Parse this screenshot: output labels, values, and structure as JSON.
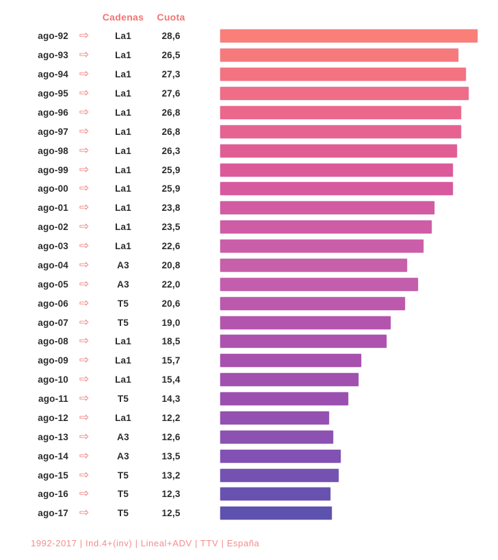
{
  "header": {
    "cadenas_label": "Cadenas",
    "cuota_label": "Cuota"
  },
  "footer": {
    "text": "1992-2017 | Ind.4+(inv) | Lineal+ADV | TTV | España"
  },
  "colors": {
    "accent": "#F37373",
    "footer_text": "#F58B8B",
    "row_text": "#2B2B2B",
    "background": "#FFFFFF",
    "bar_gradient_start": "#FA7F78",
    "bar_gradient_end": "#5D52AE"
  },
  "icons": {
    "row_arrow": "rightwards-white-arrow",
    "row_arrow_glyph": "⇨"
  },
  "chart_data": {
    "type": "bar",
    "orientation": "horizontal",
    "title": "",
    "xlabel": "",
    "ylabel": "",
    "value_column": "Cuota",
    "category_column": "Cadenas",
    "xlim": [
      0,
      29.4
    ],
    "legend": false,
    "grid": false,
    "rows": [
      {
        "year": "ago-92",
        "channel": "La1",
        "value": 28.6,
        "display": "28,6",
        "color": "#FA7F78"
      },
      {
        "year": "ago-93",
        "channel": "La1",
        "value": 26.5,
        "display": "26,5",
        "color": "#F67A7C"
      },
      {
        "year": "ago-94",
        "channel": "La1",
        "value": 27.3,
        "display": "27,3",
        "color": "#F37381"
      },
      {
        "year": "ago-95",
        "channel": "La1",
        "value": 27.6,
        "display": "27,6",
        "color": "#EF6D86"
      },
      {
        "year": "ago-96",
        "channel": "La1",
        "value": 26.8,
        "display": "26,8",
        "color": "#EB678B"
      },
      {
        "year": "ago-97",
        "channel": "La1",
        "value": 26.8,
        "display": "26,8",
        "color": "#E66290"
      },
      {
        "year": "ago-98",
        "channel": "La1",
        "value": 26.3,
        "display": "26,3",
        "color": "#E15E95"
      },
      {
        "year": "ago-99",
        "channel": "La1",
        "value": 25.9,
        "display": "25,9",
        "color": "#DC5A9A"
      },
      {
        "year": "ago-00",
        "channel": "La1",
        "value": 25.9,
        "display": "25,9",
        "color": "#D85A9E"
      },
      {
        "year": "ago-01",
        "channel": "La1",
        "value": 23.8,
        "display": "23,8",
        "color": "#D35BA2"
      },
      {
        "year": "ago-02",
        "channel": "La1",
        "value": 23.5,
        "display": "23,5",
        "color": "#CF5DA5"
      },
      {
        "year": "ago-03",
        "channel": "La1",
        "value": 22.6,
        "display": "22,6",
        "color": "#CB5EA8"
      },
      {
        "year": "ago-04",
        "channel": "A3",
        "value": 20.8,
        "display": "20,8",
        "color": "#C75FA9"
      },
      {
        "year": "ago-05",
        "channel": "A3",
        "value": 22.0,
        "display": "22,0",
        "color": "#C25EAB"
      },
      {
        "year": "ago-06",
        "channel": "T5",
        "value": 20.6,
        "display": "20,6",
        "color": "#BC59AC"
      },
      {
        "year": "ago-07",
        "channel": "T5",
        "value": 19.0,
        "display": "19,0",
        "color": "#B455AD"
      },
      {
        "year": "ago-08",
        "channel": "La1",
        "value": 18.5,
        "display": "18,5",
        "color": "#AD52AE"
      },
      {
        "year": "ago-09",
        "channel": "La1",
        "value": 15.7,
        "display": "15,7",
        "color": "#A751AE"
      },
      {
        "year": "ago-10",
        "channel": "La1",
        "value": 15.4,
        "display": "15,4",
        "color": "#A150AF"
      },
      {
        "year": "ago-11",
        "channel": "T5",
        "value": 14.3,
        "display": "14,3",
        "color": "#9B50B0"
      },
      {
        "year": "ago-12",
        "channel": "La1",
        "value": 12.2,
        "display": "12,2",
        "color": "#9451B1"
      },
      {
        "year": "ago-13",
        "channel": "A3",
        "value": 12.6,
        "display": "12,6",
        "color": "#8C52B2"
      },
      {
        "year": "ago-14",
        "channel": "A3",
        "value": 13.5,
        "display": "13,5",
        "color": "#8152B3"
      },
      {
        "year": "ago-15",
        "channel": "T5",
        "value": 13.2,
        "display": "13,2",
        "color": "#7452B1"
      },
      {
        "year": "ago-16",
        "channel": "T5",
        "value": 12.3,
        "display": "12,3",
        "color": "#6852AF"
      },
      {
        "year": "ago-17",
        "channel": "T5",
        "value": 12.5,
        "display": "12,5",
        "color": "#5D52AE"
      }
    ]
  }
}
